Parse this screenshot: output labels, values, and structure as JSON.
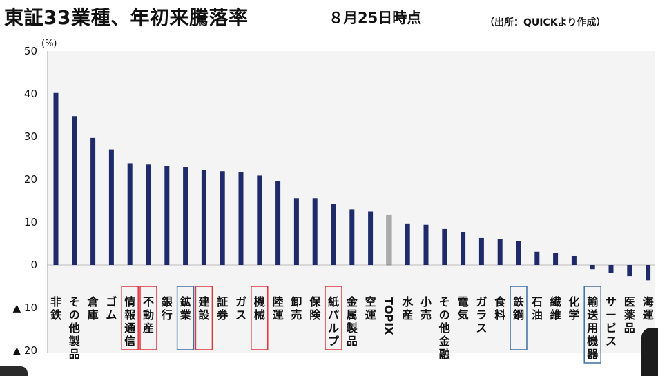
{
  "header": {
    "title": "東証33業種、年初来騰落率",
    "date": "８月25日時点",
    "source": "（出所：QUICKより作成）"
  },
  "chart_data": {
    "type": "bar",
    "unit_label": "(%)",
    "ylim": [
      -20,
      50
    ],
    "yticks": [
      {
        "value": 50,
        "label": "50"
      },
      {
        "value": 40,
        "label": "40"
      },
      {
        "value": 30,
        "label": "30"
      },
      {
        "value": 20,
        "label": "20"
      },
      {
        "value": 10,
        "label": "10"
      },
      {
        "value": 0,
        "label": "0"
      },
      {
        "value": -10,
        "label": "▲ 10"
      },
      {
        "value": -20,
        "label": "▲ 20"
      }
    ],
    "categories": [
      "非鉄",
      "その他製品",
      "倉庫",
      "ゴム",
      "情報通信",
      "不動産",
      "銀行",
      "鉱業",
      "建設",
      "証券",
      "ガス",
      "機械",
      "陸運",
      "卸売",
      "保険",
      "紙パルプ",
      "金属製品",
      "空運",
      "TOPIX",
      "水産",
      "小売",
      "その他金融",
      "電気",
      "ガラス",
      "食料",
      "鉄鋼",
      "石油",
      "繊維",
      "化学",
      "輸送用機器",
      "サービス",
      "医薬品",
      "海運"
    ],
    "values": [
      40.2,
      34.8,
      29.7,
      27.0,
      23.8,
      23.5,
      23.2,
      22.9,
      22.2,
      21.9,
      21.7,
      20.9,
      19.6,
      15.6,
      15.6,
      14.3,
      13.0,
      12.5,
      11.7,
      9.7,
      9.4,
      8.4,
      7.6,
      6.3,
      6.0,
      5.5,
      3.1,
      2.8,
      2.1,
      -1.0,
      -1.8,
      -2.6,
      -3.6
    ],
    "highlight_index": 18,
    "boxed_red": [
      "情報通信",
      "不動産",
      "建設",
      "機械",
      "紙パルプ"
    ],
    "boxed_blue": [
      "鉱業",
      "鉄鋼",
      "輸送用機器"
    ],
    "colors": {
      "bar": "#1f2a6b",
      "topix": "#aaaaaa",
      "red_box": "#e0333a",
      "blue_box": "#3d6ea5",
      "plot_bg": "#f4f4f4"
    },
    "grid": false,
    "legend": "none"
  }
}
